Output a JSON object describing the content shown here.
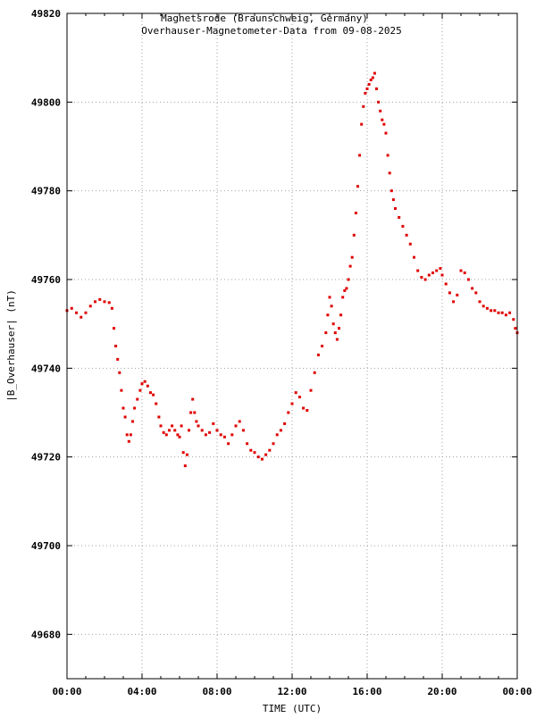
{
  "chart_data": {
    "type": "scatter",
    "title": "Magnetsrode (Braunschweig, Germany)",
    "subtitle": "Overhauser-Magnetometer-Data from 09-08-2025",
    "xlabel": "TIME (UTC)",
    "ylabel": "|B_Overhauser| (nT)",
    "xlim": [
      0,
      24
    ],
    "ylim": [
      49670,
      49820
    ],
    "grid": true,
    "marker_color": "#e00000",
    "x_ticks": [
      0,
      4,
      8,
      12,
      16,
      20,
      24
    ],
    "x_tick_labels": [
      "00:00",
      "04:00",
      "08:00",
      "12:00",
      "16:00",
      "20:00",
      "00:00"
    ],
    "y_ticks": [
      49680,
      49700,
      49720,
      49740,
      49760,
      49780,
      49800,
      49820
    ],
    "y_tick_labels": [
      "49680",
      "49700",
      "49720",
      "49740",
      "49760",
      "49780",
      "49800",
      "49820"
    ],
    "series": [
      {
        "points": [
          [
            0.0,
            49753.0
          ],
          [
            0.25,
            49753.5
          ],
          [
            0.5,
            49752.5
          ],
          [
            0.75,
            49751.5
          ],
          [
            1.0,
            49752.5
          ],
          [
            1.25,
            49754.0
          ],
          [
            1.5,
            49755.0
          ],
          [
            1.75,
            49755.5
          ],
          [
            2.0,
            49755.0
          ],
          [
            2.25,
            49754.8
          ],
          [
            2.4,
            49753.5
          ],
          [
            2.5,
            49749.0
          ],
          [
            2.6,
            49745.0
          ],
          [
            2.7,
            49742.0
          ],
          [
            2.8,
            49739.0
          ],
          [
            2.9,
            49735.0
          ],
          [
            3.0,
            49731.0
          ],
          [
            3.1,
            49729.0
          ],
          [
            3.2,
            49725.0
          ],
          [
            3.3,
            49723.5
          ],
          [
            3.4,
            49725.0
          ],
          [
            3.5,
            49728.0
          ],
          [
            3.6,
            49731.0
          ],
          [
            3.75,
            49733.0
          ],
          [
            3.9,
            49735.0
          ],
          [
            4.0,
            49736.5
          ],
          [
            4.15,
            49737.0
          ],
          [
            4.3,
            49736.0
          ],
          [
            4.45,
            49734.5
          ],
          [
            4.6,
            49734.0
          ],
          [
            4.75,
            49732.0
          ],
          [
            4.9,
            49729.0
          ],
          [
            5.0,
            49727.0
          ],
          [
            5.15,
            49725.5
          ],
          [
            5.3,
            49725.0
          ],
          [
            5.45,
            49726.0
          ],
          [
            5.6,
            49727.0
          ],
          [
            5.75,
            49726.0
          ],
          [
            5.9,
            49725.0
          ],
          [
            6.0,
            49724.5
          ],
          [
            6.1,
            49727.0
          ],
          [
            6.2,
            49721.0
          ],
          [
            6.3,
            49718.0
          ],
          [
            6.4,
            49720.5
          ],
          [
            6.5,
            49726.0
          ],
          [
            6.6,
            49730.0
          ],
          [
            6.7,
            49733.0
          ],
          [
            6.8,
            49730.0
          ],
          [
            6.9,
            49728.0
          ],
          [
            7.0,
            49727.0
          ],
          [
            7.2,
            49726.0
          ],
          [
            7.4,
            49725.0
          ],
          [
            7.6,
            49725.5
          ],
          [
            7.8,
            49727.5
          ],
          [
            8.0,
            49726.0
          ],
          [
            8.2,
            49725.0
          ],
          [
            8.4,
            49724.5
          ],
          [
            8.6,
            49723.0
          ],
          [
            8.8,
            49725.0
          ],
          [
            9.0,
            49727.0
          ],
          [
            9.2,
            49728.0
          ],
          [
            9.4,
            49726.0
          ],
          [
            9.6,
            49723.0
          ],
          [
            9.8,
            49721.5
          ],
          [
            10.0,
            49721.0
          ],
          [
            10.2,
            49720.0
          ],
          [
            10.4,
            49719.5
          ],
          [
            10.6,
            49720.5
          ],
          [
            10.8,
            49721.5
          ],
          [
            11.0,
            49723.0
          ],
          [
            11.2,
            49725.0
          ],
          [
            11.4,
            49726.0
          ],
          [
            11.6,
            49727.5
          ],
          [
            11.8,
            49730.0
          ],
          [
            12.0,
            49732.0
          ],
          [
            12.2,
            49734.5
          ],
          [
            12.4,
            49733.5
          ],
          [
            12.6,
            49731.0
          ],
          [
            12.8,
            49730.5
          ],
          [
            13.0,
            49735.0
          ],
          [
            13.2,
            49739.0
          ],
          [
            13.4,
            49743.0
          ],
          [
            13.6,
            49745.0
          ],
          [
            13.8,
            49748.0
          ],
          [
            13.9,
            49752.0
          ],
          [
            14.0,
            49756.0
          ],
          [
            14.1,
            49754.0
          ],
          [
            14.2,
            49750.0
          ],
          [
            14.3,
            49748.0
          ],
          [
            14.4,
            49746.5
          ],
          [
            14.5,
            49749.0
          ],
          [
            14.6,
            49752.0
          ],
          [
            14.7,
            49756.0
          ],
          [
            14.8,
            49757.5
          ],
          [
            14.9,
            49758.0
          ],
          [
            15.0,
            49760.0
          ],
          [
            15.1,
            49763.0
          ],
          [
            15.2,
            49765.0
          ],
          [
            15.3,
            49770.0
          ],
          [
            15.4,
            49775.0
          ],
          [
            15.5,
            49781.0
          ],
          [
            15.6,
            49788.0
          ],
          [
            15.7,
            49795.0
          ],
          [
            15.8,
            49799.0
          ],
          [
            15.9,
            49802.0
          ],
          [
            16.0,
            49803.0
          ],
          [
            16.1,
            49804.0
          ],
          [
            16.2,
            49805.0
          ],
          [
            16.3,
            49805.5
          ],
          [
            16.4,
            49806.5
          ],
          [
            16.5,
            49803.0
          ],
          [
            16.6,
            49800.0
          ],
          [
            16.7,
            49798.0
          ],
          [
            16.8,
            49796.0
          ],
          [
            16.9,
            49795.0
          ],
          [
            17.0,
            49793.0
          ],
          [
            17.1,
            49788.0
          ],
          [
            17.2,
            49784.0
          ],
          [
            17.3,
            49780.0
          ],
          [
            17.4,
            49778.0
          ],
          [
            17.5,
            49776.0
          ],
          [
            17.7,
            49774.0
          ],
          [
            17.9,
            49772.0
          ],
          [
            18.1,
            49770.0
          ],
          [
            18.3,
            49768.0
          ],
          [
            18.5,
            49765.0
          ],
          [
            18.7,
            49762.0
          ],
          [
            18.9,
            49760.5
          ],
          [
            19.1,
            49760.0
          ],
          [
            19.3,
            49761.0
          ],
          [
            19.5,
            49761.5
          ],
          [
            19.7,
            49762.0
          ],
          [
            19.9,
            49762.5
          ],
          [
            20.0,
            49761.0
          ],
          [
            20.2,
            49759.0
          ],
          [
            20.4,
            49757.0
          ],
          [
            20.6,
            49755.0
          ],
          [
            20.8,
            49756.5
          ],
          [
            21.0,
            49762.0
          ],
          [
            21.2,
            49761.5
          ],
          [
            21.4,
            49760.0
          ],
          [
            21.6,
            49758.0
          ],
          [
            21.8,
            49757.0
          ],
          [
            22.0,
            49755.0
          ],
          [
            22.2,
            49754.0
          ],
          [
            22.4,
            49753.5
          ],
          [
            22.6,
            49753.0
          ],
          [
            22.8,
            49753.0
          ],
          [
            23.0,
            49752.5
          ],
          [
            23.2,
            49752.5
          ],
          [
            23.4,
            49752.0
          ],
          [
            23.6,
            49752.5
          ],
          [
            23.8,
            49751.0
          ],
          [
            23.9,
            49749.0
          ],
          [
            24.0,
            49748.0
          ]
        ]
      }
    ]
  }
}
